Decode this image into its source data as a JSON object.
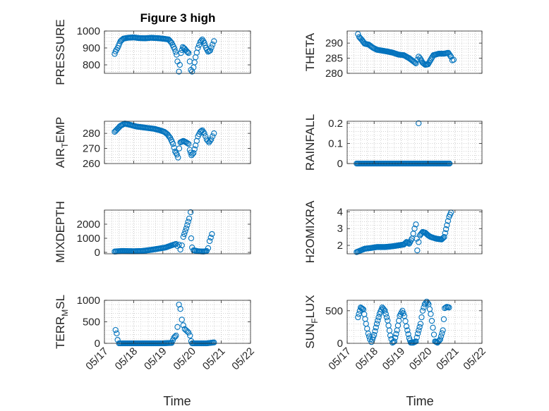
{
  "figure": {
    "title": "Figure 3 high",
    "xlabel": "Time"
  },
  "colors": {
    "marker": "#0072BD",
    "axis": "#262626",
    "grid": "#b8b8b8",
    "background": "#ffffff"
  },
  "chart_data": [
    {
      "id": "pressure",
      "type": "scatter",
      "title": "Figure 3 high",
      "xlabel": "",
      "ylabel": "PRESSURE",
      "x_ticks": [],
      "xlim": [
        17,
        22
      ],
      "ylim": [
        750,
        1000
      ],
      "y_ticks": [
        800,
        900,
        1000
      ],
      "y_tick_labels": [
        "800",
        "900",
        "1000"
      ],
      "grid": true,
      "keypoints": [
        [
          17.35,
          865
        ],
        [
          17.38,
          880
        ],
        [
          17.45,
          900
        ],
        [
          17.55,
          940
        ],
        [
          17.65,
          955
        ],
        [
          17.8,
          960
        ],
        [
          18.0,
          962
        ],
        [
          18.2,
          958
        ],
        [
          18.4,
          957
        ],
        [
          18.6,
          960
        ],
        [
          18.8,
          958
        ],
        [
          19.0,
          955
        ],
        [
          19.2,
          950
        ],
        [
          19.3,
          930
        ],
        [
          19.4,
          895
        ],
        [
          19.47,
          860
        ],
        [
          19.5,
          820
        ],
        [
          19.55,
          760
        ],
        [
          19.58,
          800
        ],
        [
          19.62,
          870
        ],
        [
          19.68,
          905
        ],
        [
          19.75,
          895
        ],
        [
          19.82,
          880
        ],
        [
          19.88,
          870
        ],
        [
          19.92,
          820
        ],
        [
          19.96,
          770
        ],
        [
          20.0,
          760
        ],
        [
          20.05,
          785
        ],
        [
          20.12,
          845
        ],
        [
          20.2,
          900
        ],
        [
          20.28,
          935
        ],
        [
          20.35,
          950
        ],
        [
          20.42,
          930
        ],
        [
          20.48,
          900
        ],
        [
          20.55,
          878
        ],
        [
          20.62,
          885
        ],
        [
          20.7,
          920
        ],
        [
          20.75,
          940
        ]
      ]
    },
    {
      "id": "theta",
      "type": "scatter",
      "xlabel": "",
      "ylabel": "THETA",
      "x_ticks": [],
      "xlim": [
        17,
        22
      ],
      "ylim": [
        280,
        294
      ],
      "y_ticks": [
        280,
        285,
        290
      ],
      "y_tick_labels": [
        "280",
        "285",
        "290"
      ],
      "grid": true,
      "keypoints": [
        [
          17.4,
          293
        ],
        [
          17.45,
          292
        ],
        [
          17.55,
          291
        ],
        [
          17.65,
          289.8
        ],
        [
          17.8,
          289.5
        ],
        [
          17.95,
          288.5
        ],
        [
          18.1,
          287.8
        ],
        [
          18.3,
          287.5
        ],
        [
          18.5,
          287.2
        ],
        [
          18.7,
          286.8
        ],
        [
          18.9,
          286.2
        ],
        [
          19.1,
          286
        ],
        [
          19.3,
          285
        ],
        [
          19.45,
          284
        ],
        [
          19.55,
          283.3
        ],
        [
          19.6,
          284.5
        ],
        [
          19.65,
          285.5
        ],
        [
          19.7,
          285
        ],
        [
          19.8,
          283.5
        ],
        [
          19.9,
          282.8
        ],
        [
          20.0,
          283
        ],
        [
          20.1,
          284.5
        ],
        [
          20.2,
          286
        ],
        [
          20.4,
          286.5
        ],
        [
          20.6,
          286.5
        ],
        [
          20.75,
          286.8
        ],
        [
          20.85,
          285.5
        ],
        [
          20.9,
          284.3
        ],
        [
          20.95,
          284.5
        ]
      ]
    },
    {
      "id": "air_temp",
      "type": "scatter",
      "xlabel": "",
      "ylabel": "AIR_TEMP",
      "x_ticks": [],
      "xlim": [
        17,
        22
      ],
      "ylim": [
        260,
        288
      ],
      "y_ticks": [
        260,
        270,
        280
      ],
      "y_tick_labels": [
        "260",
        "270",
        "280"
      ],
      "grid": true,
      "keypoints": [
        [
          17.35,
          281
        ],
        [
          17.45,
          283
        ],
        [
          17.55,
          285
        ],
        [
          17.7,
          286.5
        ],
        [
          17.9,
          285.5
        ],
        [
          18.1,
          284.5
        ],
        [
          18.3,
          284
        ],
        [
          18.5,
          283.5
        ],
        [
          18.7,
          283
        ],
        [
          18.9,
          282
        ],
        [
          19.05,
          281
        ],
        [
          19.15,
          279.5
        ],
        [
          19.25,
          277
        ],
        [
          19.35,
          273
        ],
        [
          19.42,
          268
        ],
        [
          19.48,
          266
        ],
        [
          19.52,
          264
        ],
        [
          19.56,
          270
        ],
        [
          19.6,
          274
        ],
        [
          19.7,
          275
        ],
        [
          19.8,
          274
        ],
        [
          19.88,
          273
        ],
        [
          19.92,
          269
        ],
        [
          19.98,
          265.5
        ],
        [
          20.05,
          267
        ],
        [
          20.12,
          272
        ],
        [
          20.2,
          278
        ],
        [
          20.28,
          281
        ],
        [
          20.35,
          282
        ],
        [
          20.42,
          280
        ],
        [
          20.5,
          276
        ],
        [
          20.58,
          274
        ],
        [
          20.65,
          276
        ],
        [
          20.7,
          278
        ],
        [
          20.75,
          280
        ]
      ]
    },
    {
      "id": "rainfall",
      "type": "scatter",
      "xlabel": "",
      "ylabel": "RAINFALL",
      "x_ticks": [],
      "xlim": [
        17,
        22
      ],
      "ylim": [
        0,
        0.21
      ],
      "y_ticks": [
        0,
        0.1,
        0.2
      ],
      "y_tick_labels": [
        "0",
        "0.1",
        "0.2"
      ],
      "grid": true,
      "keypoints": [
        [
          17.35,
          0
        ],
        [
          20.8,
          0
        ]
      ],
      "extra_points": [
        [
          19.65,
          0.2
        ]
      ]
    },
    {
      "id": "mixdepth",
      "type": "scatter",
      "xlabel": "",
      "ylabel": "MIXDEPTH",
      "x_ticks": [],
      "xlim": [
        17,
        22
      ],
      "ylim": [
        -100,
        3000
      ],
      "y_ticks": [
        0,
        1000,
        2000
      ],
      "y_tick_labels": [
        "0",
        "1000",
        "2000"
      ],
      "grid": true,
      "keypoints": [
        [
          17.35,
          60
        ],
        [
          17.6,
          100
        ],
        [
          18.0,
          80
        ],
        [
          18.3,
          100
        ],
        [
          18.6,
          180
        ],
        [
          18.9,
          280
        ],
        [
          19.1,
          350
        ],
        [
          19.3,
          500
        ],
        [
          19.45,
          600
        ],
        [
          19.5,
          450
        ],
        [
          19.55,
          550
        ],
        [
          19.6,
          200
        ],
        [
          19.65,
          500
        ],
        [
          19.7,
          1100
        ],
        [
          19.8,
          1700
        ],
        [
          19.9,
          2400
        ],
        [
          19.95,
          2850
        ],
        [
          19.97,
          1000
        ],
        [
          20.0,
          350
        ],
        [
          20.05,
          150
        ],
        [
          20.2,
          80
        ],
        [
          20.4,
          60
        ],
        [
          20.5,
          100
        ],
        [
          20.55,
          300
        ],
        [
          20.6,
          800
        ],
        [
          20.68,
          1300
        ]
      ]
    },
    {
      "id": "h2omixra",
      "type": "scatter",
      "xlabel": "",
      "ylabel": "H2OMIXRA",
      "x_ticks": [],
      "xlim": [
        17,
        22
      ],
      "ylim": [
        1.5,
        4.1
      ],
      "y_ticks": [
        2,
        3,
        4
      ],
      "y_tick_labels": [
        "2",
        "3",
        "4"
      ],
      "grid": true,
      "keypoints": [
        [
          17.35,
          1.6
        ],
        [
          17.5,
          1.7
        ],
        [
          17.65,
          1.8
        ],
        [
          17.9,
          1.85
        ],
        [
          18.1,
          1.9
        ],
        [
          18.4,
          1.9
        ],
        [
          18.7,
          1.95
        ],
        [
          18.9,
          2.0
        ],
        [
          19.1,
          2.05
        ],
        [
          19.2,
          2.2
        ],
        [
          19.3,
          2.1
        ],
        [
          19.4,
          2.4
        ],
        [
          19.45,
          2.7
        ],
        [
          19.5,
          3.0
        ],
        [
          19.55,
          3.25
        ],
        [
          19.58,
          2.4
        ],
        [
          19.6,
          1.7
        ],
        [
          19.65,
          2.2
        ],
        [
          19.7,
          2.6
        ],
        [
          19.8,
          2.8
        ],
        [
          19.9,
          2.75
        ],
        [
          20.0,
          2.6
        ],
        [
          20.1,
          2.5
        ],
        [
          20.3,
          2.4
        ],
        [
          20.5,
          2.35
        ],
        [
          20.6,
          2.5
        ],
        [
          20.7,
          3.2
        ],
        [
          20.78,
          3.7
        ],
        [
          20.85,
          3.95
        ]
      ]
    },
    {
      "id": "terr_msl",
      "type": "scatter",
      "xlabel": "Time",
      "ylabel": "TERR_MSL",
      "xlim": [
        17,
        22
      ],
      "ylim": [
        0,
        1000
      ],
      "y_ticks": [
        0,
        500,
        1000
      ],
      "y_tick_labels": [
        "0",
        "500",
        "1000"
      ],
      "grid": true,
      "x_ticks": [
        17,
        18,
        19,
        20,
        21,
        22
      ],
      "x_tick_labels": [
        "05/17",
        "05/18",
        "05/19",
        "05/20",
        "05/21",
        "05/22"
      ],
      "keypoints": [
        [
          17.38,
          310
        ],
        [
          17.42,
          230
        ],
        [
          17.45,
          80
        ],
        [
          17.5,
          0
        ],
        [
          18.0,
          0
        ],
        [
          18.5,
          0
        ],
        [
          19.0,
          0
        ],
        [
          19.3,
          10
        ],
        [
          19.38,
          130
        ],
        [
          19.45,
          180
        ],
        [
          19.5,
          380
        ],
        [
          19.55,
          900
        ],
        [
          19.6,
          800
        ],
        [
          19.65,
          550
        ],
        [
          19.7,
          420
        ],
        [
          19.75,
          330
        ],
        [
          19.8,
          300
        ],
        [
          19.88,
          250
        ],
        [
          19.93,
          180
        ],
        [
          19.97,
          50
        ],
        [
          20.0,
          0
        ],
        [
          20.5,
          0
        ],
        [
          20.75,
          20
        ]
      ]
    },
    {
      "id": "sun_flux",
      "type": "scatter",
      "xlabel": "Time",
      "ylabel": "SUN_FLUX",
      "xlim": [
        17,
        22
      ],
      "ylim": [
        0,
        660
      ],
      "y_ticks": [
        0,
        500
      ],
      "y_tick_labels": [
        "0",
        "500"
      ],
      "grid": true,
      "x_ticks": [
        17,
        18,
        19,
        20,
        21,
        22
      ],
      "x_tick_labels": [
        "05/17",
        "05/18",
        "05/19",
        "05/20",
        "05/21",
        "05/22"
      ],
      "keypoints": [
        [
          17.4,
          400
        ],
        [
          17.5,
          550
        ],
        [
          17.6,
          520
        ],
        [
          17.7,
          300
        ],
        [
          17.78,
          150
        ],
        [
          17.85,
          60
        ],
        [
          17.9,
          20
        ],
        [
          18.0,
          130
        ],
        [
          18.1,
          300
        ],
        [
          18.2,
          450
        ],
        [
          18.3,
          550
        ],
        [
          18.4,
          500
        ],
        [
          18.5,
          350
        ],
        [
          18.6,
          120
        ],
        [
          18.68,
          10
        ],
        [
          18.75,
          30
        ],
        [
          18.85,
          200
        ],
        [
          18.95,
          420
        ],
        [
          19.05,
          500
        ],
        [
          19.12,
          420
        ],
        [
          19.2,
          260
        ],
        [
          19.3,
          80
        ],
        [
          19.36,
          10
        ],
        [
          19.45,
          10
        ],
        [
          19.55,
          30
        ],
        [
          19.62,
          150
        ],
        [
          19.72,
          300
        ],
        [
          19.8,
          500
        ],
        [
          19.88,
          600
        ],
        [
          19.95,
          640
        ],
        [
          20.02,
          600
        ],
        [
          20.1,
          450
        ],
        [
          20.18,
          240
        ],
        [
          20.26,
          30
        ],
        [
          20.35,
          10
        ],
        [
          20.45,
          60
        ],
        [
          20.55,
          200
        ],
        [
          20.62,
          540
        ],
        [
          20.7,
          560
        ],
        [
          20.78,
          550
        ]
      ]
    }
  ]
}
